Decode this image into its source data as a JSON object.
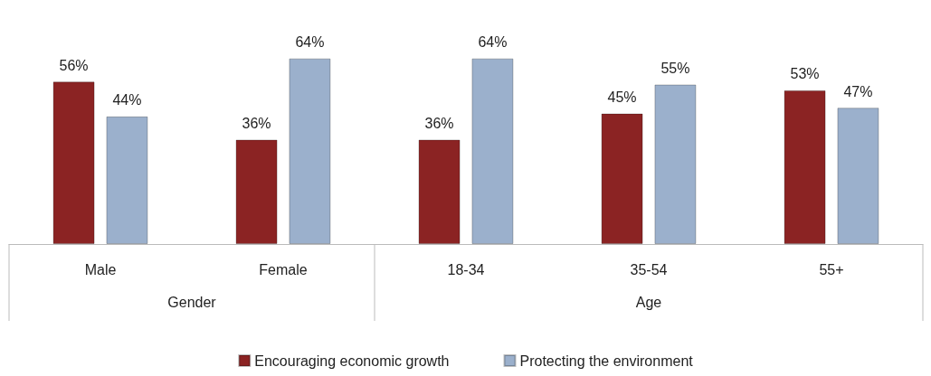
{
  "chart_data": {
    "type": "bar",
    "categories": [
      "Male",
      "Female",
      "18-34",
      "35-54",
      "55+"
    ],
    "series": [
      {
        "name": "Encouraging economic growth",
        "color": "#8b2323",
        "values": [
          56,
          36,
          36,
          45,
          53
        ],
        "value_labels": [
          "56%",
          "36%",
          "36%",
          "45%",
          "53%"
        ]
      },
      {
        "name": "Protecting the environment",
        "color": "#9bb0cc",
        "values": [
          44,
          64,
          64,
          55,
          47
        ],
        "value_labels": [
          "44%",
          "64%",
          "64%",
          "55%",
          "47%"
        ]
      }
    ],
    "annotations": [
      "Gender",
      "Age"
    ],
    "legend": "bottom"
  }
}
